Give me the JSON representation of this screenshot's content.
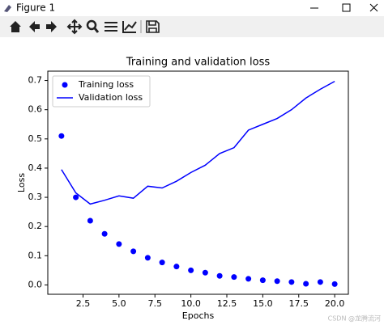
{
  "window": {
    "title": "Figure 1"
  },
  "watermark": "CSDN @龙腾流河",
  "chart_data": {
    "type": "line",
    "title": "Training and validation loss",
    "x_label": "Epochs",
    "y_label": "Loss",
    "x": [
      1,
      2,
      3,
      4,
      5,
      6,
      7,
      8,
      9,
      10,
      11,
      12,
      13,
      14,
      15,
      16,
      17,
      18,
      19,
      20
    ],
    "series": [
      {
        "name": "Training loss",
        "color": "#0000ff",
        "style": "dots",
        "values": [
          0.51,
          0.3,
          0.22,
          0.175,
          0.14,
          0.115,
          0.093,
          0.077,
          0.063,
          0.05,
          0.042,
          0.031,
          0.027,
          0.021,
          0.016,
          0.013,
          0.01,
          0.004,
          0.01,
          0.003
        ]
      },
      {
        "name": "Validation loss",
        "color": "#0000ff",
        "style": "line",
        "values": [
          0.395,
          0.315,
          0.277,
          0.29,
          0.305,
          0.297,
          0.338,
          0.332,
          0.355,
          0.385,
          0.41,
          0.45,
          0.47,
          0.53,
          0.55,
          0.57,
          0.6,
          0.64,
          0.67,
          0.697
        ]
      }
    ],
    "xlim": [
      0.05,
      20.95
    ],
    "xticks": [
      2.5,
      {
        "value": 5,
        "label": "5.0"
      },
      7.5,
      {
        "value": 10,
        "label": "10.0"
      },
      12.5,
      {
        "value": 15,
        "label": "15.0"
      },
      17.5,
      {
        "value": 20,
        "label": "20.0"
      }
    ],
    "ylim": [
      -0.032,
      0.732
    ],
    "yticks": [
      {
        "value": 0,
        "label": "0.0"
      },
      0.1,
      0.2,
      0.3,
      0.4,
      0.5,
      0.6,
      0.7
    ],
    "legend": "upper left",
    "grid": false
  }
}
